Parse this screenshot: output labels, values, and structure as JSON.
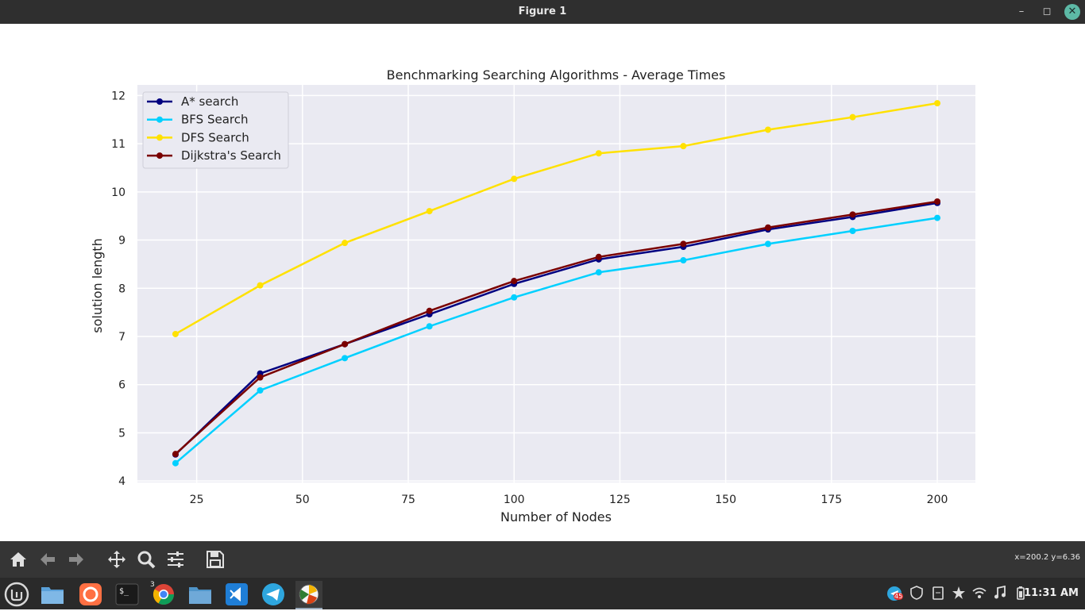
{
  "window": {
    "title": "Figure 1"
  },
  "chart_data": {
    "type": "line",
    "title": "Benchmarking Searching Algorithms - Average Times",
    "xlabel": "Number of Nodes",
    "ylabel": "solution length",
    "xlim": [
      11,
      209
    ],
    "ylim": [
      3.97,
      12.22
    ],
    "xticks": [
      25,
      50,
      75,
      100,
      125,
      150,
      175,
      200
    ],
    "yticks": [
      4,
      5,
      6,
      7,
      8,
      9,
      10,
      11,
      12
    ],
    "grid": true,
    "legend_position": "top-left",
    "x": [
      20,
      40,
      60,
      80,
      100,
      120,
      140,
      160,
      180,
      200
    ],
    "series": [
      {
        "name": "A* search",
        "color": "#000080",
        "values": [
          4.55,
          6.23,
          6.84,
          7.46,
          8.09,
          8.6,
          8.86,
          9.22,
          9.48,
          9.77
        ]
      },
      {
        "name": "BFS Search",
        "color": "#00d0ff",
        "values": [
          4.37,
          5.88,
          6.55,
          7.21,
          7.81,
          8.33,
          8.58,
          8.92,
          9.19,
          9.46
        ]
      },
      {
        "name": "DFS Search",
        "color": "#ffe100",
        "values": [
          7.05,
          8.06,
          8.94,
          9.6,
          10.27,
          10.8,
          10.95,
          11.29,
          11.55,
          11.84
        ]
      },
      {
        "name": "Dijkstra's Search",
        "color": "#7a0000",
        "values": [
          4.56,
          6.15,
          6.84,
          7.53,
          8.15,
          8.65,
          8.92,
          9.26,
          9.53,
          9.8
        ]
      }
    ]
  },
  "toolbar": {
    "icons": [
      "home-icon",
      "back-arrow-icon",
      "forward-arrow-icon",
      "pan-icon",
      "zoom-icon",
      "configure-subplots-icon",
      "save-icon"
    ],
    "coords": "x=200.2 y=6.36"
  },
  "taskbar": {
    "chrome_badge": "3",
    "tray_badge": "45",
    "clock": "11:31 AM"
  }
}
